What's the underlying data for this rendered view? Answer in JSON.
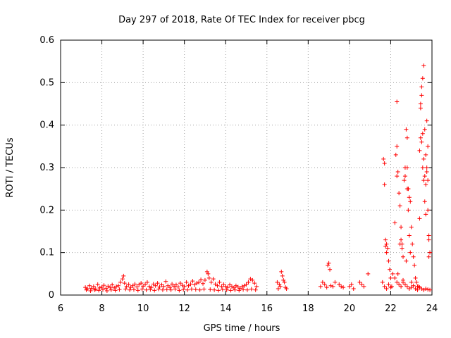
{
  "chart_data": {
    "type": "scatter",
    "title": "Day 297 of 2018, Rate Of TEC Index for receiver pbcg",
    "xlabel": "GPS time / hours",
    "ylabel": "ROTI / TECUs",
    "xlim": [
      6,
      24
    ],
    "ylim": [
      0,
      0.6
    ],
    "xticks": [
      "6",
      "8",
      "10",
      "12",
      "14",
      "16",
      "18",
      "20",
      "22",
      "24"
    ],
    "yticks": [
      "0",
      "0.1",
      "0.2",
      "0.3",
      "0.4",
      "0.5",
      "0.6"
    ],
    "grid": true,
    "marker": "+",
    "color": "#ff0000",
    "series": [
      {
        "x": [
          7.2,
          7.3,
          7.4,
          7.5,
          7.6,
          7.7,
          7.8,
          7.9,
          8.0,
          8.1,
          8.2,
          8.3,
          8.4,
          8.5,
          8.6,
          8.7,
          8.8,
          8.9,
          9.0,
          9.05,
          9.1,
          9.2,
          9.3,
          9.4,
          9.5,
          9.6,
          9.7,
          9.8,
          9.9,
          10.0,
          10.1,
          10.2,
          10.3,
          10.4,
          10.5,
          10.6,
          10.7,
          10.8,
          10.9,
          11.0,
          11.1,
          11.2,
          11.3,
          11.4,
          11.5,
          11.6,
          11.7,
          11.8,
          11.9,
          12.0,
          12.1,
          12.2,
          12.3,
          12.4,
          12.5,
          12.6,
          12.7,
          12.8,
          12.9,
          13.0,
          13.1,
          13.15,
          13.2,
          13.3,
          13.4,
          13.5,
          13.6,
          13.7,
          13.8,
          13.9,
          14.0,
          14.1,
          14.2,
          14.3,
          14.4,
          14.5,
          14.6,
          14.7,
          14.8,
          14.9,
          15.0,
          15.1,
          15.2,
          15.3,
          15.4,
          15.5,
          7.25,
          7.45,
          7.65,
          7.85,
          8.05,
          8.25,
          8.45,
          8.65,
          8.85,
          9.15,
          9.35,
          9.55,
          9.75,
          9.95,
          10.15,
          10.35,
          10.55,
          10.75,
          10.95,
          11.15,
          11.35,
          11.55,
          11.75,
          11.95,
          12.15,
          12.35,
          12.55,
          12.75,
          12.95,
          13.25,
          13.45,
          13.65,
          13.85,
          14.05,
          14.25,
          14.45,
          14.65,
          14.85,
          15.05,
          15.25,
          15.45,
          16.5,
          16.55,
          16.6,
          16.65,
          16.7,
          16.75,
          16.8,
          16.85,
          16.9,
          16.95,
          18.6,
          18.7,
          18.8,
          18.9,
          18.95,
          19.0,
          19.05,
          19.1,
          19.2,
          19.3,
          19.5,
          19.6,
          19.7,
          20.0,
          20.1,
          20.2,
          20.5,
          20.6,
          20.7,
          20.9,
          21.6,
          21.65,
          21.7,
          21.75,
          21.8,
          21.85,
          21.9,
          21.95,
          22.0,
          22.05,
          22.1,
          22.2,
          22.25,
          22.3,
          22.35,
          22.4,
          22.45,
          22.5,
          22.55,
          22.6,
          22.65,
          22.7,
          22.75,
          22.8,
          22.85,
          22.9,
          22.95,
          23.0,
          23.05,
          23.1,
          23.15,
          23.2,
          23.25,
          23.3,
          23.35,
          23.4,
          23.45,
          23.5,
          23.55,
          23.6,
          23.65,
          23.7,
          23.75,
          23.8,
          23.85,
          23.9,
          21.7,
          21.75,
          21.8,
          22.3,
          22.35,
          22.5,
          22.55,
          22.8,
          22.85,
          22.9,
          23.4,
          23.45,
          23.5,
          23.55,
          23.6,
          23.65,
          23.7,
          23.75,
          23.8,
          23.85,
          22.3,
          22.45,
          22.6,
          22.7,
          22.75,
          22.8,
          22.85,
          22.95,
          23.0,
          23.45,
          23.5,
          23.55,
          23.6,
          23.65,
          23.7,
          23.75,
          23.8,
          23.85,
          21.7,
          21.8,
          21.9,
          22.0,
          22.2,
          22.3,
          22.4,
          22.5,
          22.6,
          22.7,
          22.8,
          22.9,
          23.0,
          23.1,
          23.2,
          23.3,
          23.4,
          23.5,
          23.6,
          23.7,
          23.8,
          23.9
        ],
        "y": [
          0.018,
          0.015,
          0.022,
          0.016,
          0.02,
          0.014,
          0.025,
          0.017,
          0.019,
          0.023,
          0.016,
          0.021,
          0.018,
          0.024,
          0.017,
          0.02,
          0.022,
          0.03,
          0.038,
          0.045,
          0.028,
          0.02,
          0.025,
          0.018,
          0.022,
          0.026,
          0.019,
          0.024,
          0.028,
          0.021,
          0.025,
          0.03,
          0.02,
          0.018,
          0.026,
          0.022,
          0.028,
          0.019,
          0.024,
          0.02,
          0.032,
          0.022,
          0.018,
          0.026,
          0.021,
          0.024,
          0.019,
          0.028,
          0.023,
          0.02,
          0.03,
          0.022,
          0.026,
          0.033,
          0.024,
          0.028,
          0.03,
          0.036,
          0.027,
          0.035,
          0.055,
          0.05,
          0.04,
          0.03,
          0.038,
          0.026,
          0.022,
          0.03,
          0.02,
          0.025,
          0.02,
          0.018,
          0.024,
          0.02,
          0.017,
          0.022,
          0.019,
          0.016,
          0.02,
          0.022,
          0.025,
          0.03,
          0.038,
          0.035,
          0.028,
          0.02,
          0.012,
          0.01,
          0.012,
          0.011,
          0.013,
          0.01,
          0.012,
          0.011,
          0.013,
          0.014,
          0.012,
          0.013,
          0.011,
          0.014,
          0.012,
          0.013,
          0.011,
          0.014,
          0.012,
          0.013,
          0.012,
          0.014,
          0.011,
          0.013,
          0.012,
          0.014,
          0.013,
          0.012,
          0.014,
          0.013,
          0.012,
          0.011,
          0.013,
          0.012,
          0.011,
          0.012,
          0.011,
          0.013,
          0.012,
          0.014,
          0.012,
          0.03,
          0.015,
          0.025,
          0.02,
          0.055,
          0.045,
          0.035,
          0.03,
          0.018,
          0.015,
          0.02,
          0.03,
          0.025,
          0.018,
          0.07,
          0.075,
          0.06,
          0.022,
          0.02,
          0.03,
          0.025,
          0.02,
          0.018,
          0.02,
          0.025,
          0.015,
          0.03,
          0.025,
          0.02,
          0.05,
          0.03,
          0.32,
          0.26,
          0.13,
          0.12,
          0.11,
          0.08,
          0.06,
          0.04,
          0.02,
          0.05,
          0.17,
          0.33,
          0.35,
          0.29,
          0.24,
          0.21,
          0.13,
          0.11,
          0.09,
          0.27,
          0.3,
          0.39,
          0.37,
          0.25,
          0.23,
          0.22,
          0.16,
          0.12,
          0.09,
          0.07,
          0.04,
          0.03,
          0.02,
          0.02,
          0.18,
          0.45,
          0.49,
          0.51,
          0.54,
          0.39,
          0.33,
          0.3,
          0.2,
          0.14,
          0.1,
          0.31,
          0.115,
          0.1,
          0.28,
          0.05,
          0.16,
          0.12,
          0.3,
          0.25,
          0.14,
          0.34,
          0.37,
          0.47,
          0.38,
          0.32,
          0.28,
          0.26,
          0.41,
          0.35,
          0.09,
          0.455,
          0.12,
          0.03,
          0.28,
          0.08,
          0.25,
          0.2,
          0.1,
          0.03,
          0.44,
          0.36,
          0.3,
          0.27,
          0.22,
          0.19,
          0.29,
          0.27,
          0.13,
          0.02,
          0.015,
          0.025,
          0.018,
          0.04,
          0.03,
          0.025,
          0.02,
          0.035,
          0.025,
          0.02,
          0.015,
          0.018,
          0.022,
          0.015,
          0.012,
          0.018,
          0.015,
          0.012,
          0.015,
          0.013,
          0.012
        ]
      }
    ]
  }
}
